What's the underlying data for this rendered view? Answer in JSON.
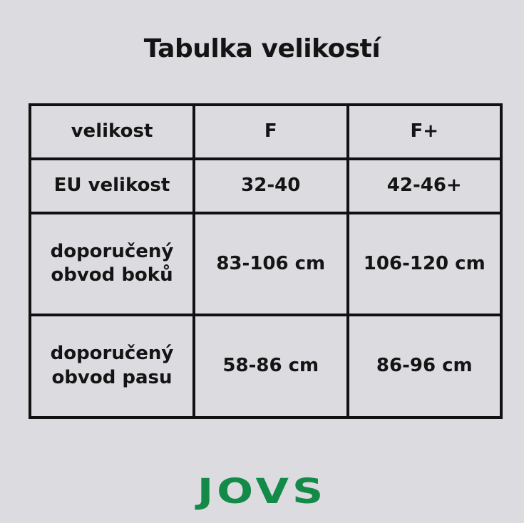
{
  "title": "Tabulka velikostí",
  "table": {
    "header": [
      "velikost",
      "F",
      "F+"
    ],
    "rows": [
      [
        "EU velikost",
        "32-40",
        "42-46+"
      ],
      [
        "doporučený obvod boků",
        "83-106 cm",
        "106-120 cm"
      ],
      [
        "doporučený obvod pasu",
        "58-86 cm",
        "86-96 cm"
      ]
    ]
  },
  "logo": {
    "text": "JOVS",
    "color": "#138a48"
  }
}
